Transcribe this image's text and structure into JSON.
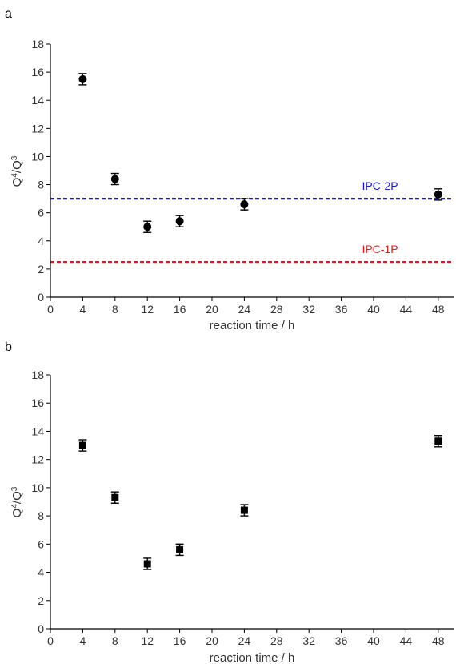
{
  "chart_data": [
    {
      "type": "scatter",
      "panel_label": "a",
      "xlabel": "reaction time / h",
      "ylabel_main": "Q",
      "ylabel_sup1": "4",
      "ylabel_mid": "/Q",
      "ylabel_sup2": "3",
      "xlim": [
        0,
        50
      ],
      "ylim": [
        0,
        18
      ],
      "xticks": [
        0,
        4,
        8,
        12,
        16,
        20,
        24,
        28,
        32,
        36,
        40,
        44,
        48
      ],
      "yticks": [
        0,
        2,
        4,
        6,
        8,
        10,
        12,
        14,
        16,
        18
      ],
      "marker": "circle",
      "points": [
        {
          "x": 4,
          "y": 15.5,
          "err": 0.4
        },
        {
          "x": 8,
          "y": 8.4,
          "err": 0.4
        },
        {
          "x": 12,
          "y": 5.0,
          "err": 0.4
        },
        {
          "x": 16,
          "y": 5.4,
          "err": 0.4
        },
        {
          "x": 24,
          "y": 6.6,
          "err": 0.4
        },
        {
          "x": 48,
          "y": 7.3,
          "err": 0.4
        }
      ],
      "reference_lines": [
        {
          "label": "IPC-2P",
          "y": 7.0,
          "color": "#1a1ad6"
        },
        {
          "label": "IPC-1P",
          "y": 2.5,
          "color": "#e01a1a"
        }
      ]
    },
    {
      "type": "scatter",
      "panel_label": "b",
      "xlabel": "reaction time / h",
      "ylabel_main": "Q",
      "ylabel_sup1": "4",
      "ylabel_mid": "/Q",
      "ylabel_sup2": "3",
      "xlim": [
        0,
        50
      ],
      "ylim": [
        0,
        18
      ],
      "xticks": [
        0,
        4,
        8,
        12,
        16,
        20,
        24,
        28,
        32,
        36,
        40,
        44,
        48
      ],
      "yticks": [
        0,
        2,
        4,
        6,
        8,
        10,
        12,
        14,
        16,
        18
      ],
      "marker": "square",
      "points": [
        {
          "x": 4,
          "y": 13.0,
          "err": 0.4
        },
        {
          "x": 8,
          "y": 9.3,
          "err": 0.4
        },
        {
          "x": 12,
          "y": 4.6,
          "err": 0.4
        },
        {
          "x": 16,
          "y": 5.6,
          "err": 0.4
        },
        {
          "x": 24,
          "y": 8.4,
          "err": 0.4
        },
        {
          "x": 48,
          "y": 13.3,
          "err": 0.4
        }
      ],
      "reference_lines": []
    }
  ]
}
